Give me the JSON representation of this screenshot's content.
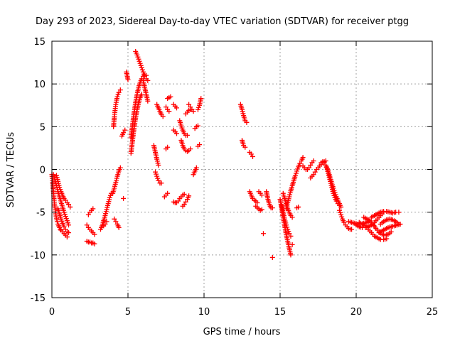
{
  "chart_data": {
    "type": "scatter",
    "title": "Day 293 of 2023, Sidereal Day-to-day VTEC variation (SDTVAR) for receiver ptgg",
    "xlabel": "GPS time / hours",
    "ylabel": "SDTVAR / TECUs",
    "xlim": [
      0,
      25
    ],
    "ylim": [
      -15,
      15
    ],
    "xticks": [
      0,
      5,
      10,
      15,
      20,
      25
    ],
    "yticks": [
      -15,
      -10,
      -5,
      0,
      5,
      10,
      15
    ],
    "xtick_labels": [
      "0",
      "5",
      "10",
      "15",
      "20",
      "25"
    ],
    "ytick_labels": [
      "-15",
      "-10",
      "-5",
      "0",
      "5",
      "10",
      "15"
    ],
    "grid": true,
    "marker": "+",
    "color": "#ff0000",
    "series": [
      {
        "name": "t0",
        "x": [
          0.0,
          0.05,
          0.1,
          0.15,
          0.2,
          0.25,
          0.3,
          0.35,
          0.4,
          0.45,
          0.5,
          0.55,
          0.6,
          0.7,
          0.8,
          0.9,
          1.0
        ],
        "y": [
          -0.6,
          -1.5,
          -2.6,
          -3.6,
          -4.5,
          -5.2,
          -5.7,
          -6.1,
          -6.4,
          -6.6,
          -6.8,
          -7.0,
          -7.1,
          -7.3,
          -7.5,
          -7.7,
          -7.9
        ]
      },
      {
        "name": "t1",
        "x": [
          0.1,
          0.2,
          0.3,
          0.4,
          0.5,
          0.6,
          0.7,
          0.8,
          0.9,
          1.0,
          1.1
        ],
        "y": [
          -0.6,
          -1.2,
          -1.9,
          -2.6,
          -3.2,
          -3.8,
          -4.4,
          -5.0,
          -5.5,
          -6.0,
          -6.5
        ]
      },
      {
        "name": "t2",
        "x": [
          0.3,
          0.4,
          0.5,
          0.6,
          0.7,
          0.8,
          0.9,
          1.0,
          1.1,
          1.2
        ],
        "y": [
          -0.7,
          -1.4,
          -2.1,
          -2.6,
          -3.0,
          -3.4,
          -3.6,
          -3.9,
          -4.1,
          -4.4
        ]
      },
      {
        "name": "t3",
        "x": [
          0.4,
          0.5,
          0.6,
          0.7,
          0.8,
          0.9,
          1.0,
          1.1
        ],
        "y": [
          -4.6,
          -5.2,
          -5.8,
          -6.3,
          -6.7,
          -7.0,
          -7.3,
          -7.4
        ]
      },
      {
        "name": "t4",
        "x": [
          2.3,
          2.4,
          2.5,
          2.6,
          2.7,
          2.8
        ],
        "y": [
          -8.4,
          -8.5,
          -8.5,
          -8.6,
          -8.6,
          -8.7
        ]
      },
      {
        "name": "t5",
        "x": [
          2.3,
          2.4,
          2.5,
          2.6,
          2.7,
          2.8
        ],
        "y": [
          -6.5,
          -6.8,
          -7.0,
          -7.2,
          -7.4,
          -7.6
        ]
      },
      {
        "name": "t6",
        "x": [
          2.4,
          2.5,
          2.6,
          2.7
        ],
        "y": [
          -5.3,
          -5.0,
          -4.8,
          -4.6
        ]
      },
      {
        "name": "t7",
        "x": [
          3.2,
          3.3,
          3.4,
          3.5,
          3.6,
          3.7,
          3.8,
          3.9
        ],
        "y": [
          -7.0,
          -6.6,
          -6.0,
          -5.4,
          -4.7,
          -4.0,
          -3.3,
          -2.8
        ]
      },
      {
        "name": "t8",
        "x": [
          3.4,
          3.5,
          3.6
        ],
        "y": [
          -6.6,
          -6.4,
          -6.1
        ]
      },
      {
        "name": "t9",
        "x": [
          4.1,
          4.2,
          4.3,
          4.4
        ],
        "y": [
          -5.8,
          -6.1,
          -6.4,
          -6.8
        ]
      },
      {
        "name": "t10",
        "x": [
          4.0,
          4.1,
          4.2,
          4.3,
          4.4,
          4.5
        ],
        "y": [
          -2.8,
          -2.2,
          -1.5,
          -0.8,
          -0.2,
          0.2
        ]
      },
      {
        "name": "t11",
        "x": [
          4.7
        ],
        "y": [
          -3.4
        ]
      },
      {
        "name": "t12",
        "x": [
          4.05,
          4.1,
          4.15,
          4.2,
          4.25,
          4.3,
          4.35,
          4.4,
          4.5
        ],
        "y": [
          5.0,
          6.0,
          6.9,
          7.6,
          8.1,
          8.5,
          8.8,
          9.0,
          9.3
        ]
      },
      {
        "name": "t13",
        "x": [
          4.6,
          4.7,
          4.8
        ],
        "y": [
          3.9,
          4.3,
          4.6
        ]
      },
      {
        "name": "t14",
        "x": [
          5.2,
          5.3,
          5.4,
          5.5,
          5.6,
          5.7,
          5.8,
          5.9,
          6.0,
          6.1,
          6.2
        ],
        "y": [
          3.7,
          5.2,
          6.6,
          7.8,
          8.8,
          9.6,
          10.2,
          10.6,
          10.9,
          11.0,
          11.0
        ]
      },
      {
        "name": "t15",
        "x": [
          5.2,
          5.3,
          5.4,
          5.5,
          5.6,
          5.7,
          5.8,
          5.9
        ],
        "y": [
          1.9,
          3.4,
          4.8,
          6.0,
          7.0,
          7.8,
          8.4,
          8.8
        ]
      },
      {
        "name": "t16",
        "x": [
          5.5,
          5.6,
          5.7,
          5.8,
          5.9,
          6.0,
          6.1,
          6.2,
          6.3
        ],
        "y": [
          13.8,
          13.4,
          12.9,
          12.4,
          11.9,
          11.4,
          10.9,
          10.6,
          10.4
        ]
      },
      {
        "name": "t17",
        "x": [
          4.9,
          5.0
        ],
        "y": [
          11.4,
          10.5
        ]
      },
      {
        "name": "t18",
        "x": [
          6.0,
          6.1,
          6.2,
          6.3
        ],
        "y": [
          10.4,
          9.6,
          8.8,
          8.0
        ]
      },
      {
        "name": "t19",
        "x": [
          6.7,
          6.8,
          6.9,
          7.0
        ],
        "y": [
          2.8,
          2.0,
          1.2,
          0.5
        ]
      },
      {
        "name": "t20",
        "x": [
          6.9,
          7.0,
          7.1,
          7.2,
          7.3
        ],
        "y": [
          7.6,
          7.2,
          6.8,
          6.4,
          6.2
        ]
      },
      {
        "name": "t21",
        "x": [
          6.8,
          6.9,
          7.0,
          7.1,
          7.2
        ],
        "y": [
          -0.3,
          -0.8,
          -1.3,
          -1.6,
          -1.6
        ]
      },
      {
        "name": "t22",
        "x": [
          7.5,
          7.6,
          7.7
        ],
        "y": [
          7.3,
          7.0,
          6.8
        ]
      },
      {
        "name": "t23",
        "x": [
          7.6,
          7.7,
          7.8
        ],
        "y": [
          8.3,
          8.4,
          8.5
        ]
      },
      {
        "name": "t24",
        "x": [
          7.5,
          7.6
        ],
        "y": [
          2.4,
          2.6
        ]
      },
      {
        "name": "t25",
        "x": [
          7.4,
          7.5,
          7.6
        ],
        "y": [
          -3.2,
          -3.0,
          -2.8
        ]
      },
      {
        "name": "t26",
        "x": [
          8.0,
          8.1,
          8.2
        ],
        "y": [
          4.6,
          4.4,
          4.2
        ]
      },
      {
        "name": "t27",
        "x": [
          8.0,
          8.1,
          8.2
        ],
        "y": [
          7.6,
          7.4,
          7.2
        ]
      },
      {
        "name": "t28",
        "x": [
          8.4,
          8.5,
          8.6,
          8.7,
          8.8,
          8.9
        ],
        "y": [
          5.7,
          5.1,
          4.6,
          4.2,
          4.0,
          4.0
        ]
      },
      {
        "name": "t29",
        "x": [
          8.8,
          8.9,
          9.0,
          9.1
        ],
        "y": [
          6.5,
          6.7,
          6.9,
          7.0
        ]
      },
      {
        "name": "t30",
        "x": [
          8.5,
          8.6,
          8.7,
          8.8,
          8.9,
          9.0,
          9.1
        ],
        "y": [
          3.4,
          2.8,
          2.4,
          2.2,
          2.1,
          2.2,
          2.4
        ]
      },
      {
        "name": "t31",
        "x": [
          8.0,
          8.1,
          8.2,
          8.3,
          8.4,
          8.5,
          8.6,
          8.7
        ],
        "y": [
          -3.8,
          -3.9,
          -3.9,
          -3.7,
          -3.4,
          -3.2,
          -3.0,
          -2.9
        ]
      },
      {
        "name": "t32",
        "x": [
          8.6,
          8.7,
          8.8,
          8.9,
          9.0
        ],
        "y": [
          -4.3,
          -4.1,
          -3.8,
          -3.5,
          -3.1
        ]
      },
      {
        "name": "t33",
        "x": [
          9.0,
          9.1,
          9.2,
          9.3
        ],
        "y": [
          7.6,
          7.3,
          7.0,
          6.8
        ]
      },
      {
        "name": "t34",
        "x": [
          9.3,
          9.4,
          9.5
        ],
        "y": [
          -0.6,
          -0.2,
          0.2
        ]
      },
      {
        "name": "t35",
        "x": [
          9.4,
          9.5,
          9.6
        ],
        "y": [
          4.8,
          5.0,
          5.1
        ]
      },
      {
        "name": "t36",
        "x": [
          9.6,
          9.7,
          9.8
        ],
        "y": [
          7.0,
          7.5,
          8.3
        ]
      },
      {
        "name": "t37",
        "x": [
          9.6,
          9.7
        ],
        "y": [
          2.7,
          2.9
        ]
      },
      {
        "name": "t38",
        "x": [
          12.4,
          12.5,
          12.6,
          12.7,
          12.8
        ],
        "y": [
          7.6,
          7.0,
          6.3,
          5.7,
          5.5
        ]
      },
      {
        "name": "t39",
        "x": [
          12.5,
          12.6,
          12.7
        ],
        "y": [
          3.4,
          2.8,
          2.6
        ]
      },
      {
        "name": "t40",
        "x": [
          13.0,
          13.1,
          13.2
        ],
        "y": [
          2.0,
          1.8,
          1.5
        ]
      },
      {
        "name": "t41",
        "x": [
          13.0,
          13.1,
          13.2,
          13.3,
          13.4,
          13.5
        ],
        "y": [
          -2.6,
          -3.0,
          -3.4,
          -3.6,
          -3.7,
          -3.9
        ]
      },
      {
        "name": "t42",
        "x": [
          13.6,
          13.7,
          13.8
        ],
        "y": [
          -2.6,
          -2.8,
          -3.0
        ]
      },
      {
        "name": "t43",
        "x": [
          13.4,
          13.5,
          13.6,
          13.7,
          13.8
        ],
        "y": [
          -4.3,
          -4.5,
          -4.6,
          -4.8,
          -4.7
        ]
      },
      {
        "name": "t44",
        "x": [
          13.9
        ],
        "y": [
          -7.5
        ]
      },
      {
        "name": "t45",
        "x": [
          14.1,
          14.2,
          14.3,
          14.4,
          14.5
        ],
        "y": [
          -2.6,
          -3.5,
          -4.1,
          -4.5,
          -4.5
        ]
      },
      {
        "name": "t46",
        "x": [
          14.5
        ],
        "y": [
          -10.3
        ]
      },
      {
        "name": "t47",
        "x": [
          15.0,
          15.1,
          15.2,
          15.3,
          15.4,
          15.5,
          15.6,
          15.7
        ],
        "y": [
          -3.5,
          -4.5,
          -5.6,
          -6.6,
          -7.6,
          -8.4,
          -9.2,
          -10.0
        ]
      },
      {
        "name": "t48",
        "x": [
          15.1,
          15.2,
          15.3,
          15.4,
          15.5,
          15.6,
          15.7
        ],
        "y": [
          -4.2,
          -5.0,
          -5.8,
          -6.5,
          -7.0,
          -7.5,
          -7.8
        ]
      },
      {
        "name": "t49",
        "x": [
          15.2,
          15.3,
          15.4,
          15.5,
          15.6,
          15.7,
          15.8
        ],
        "y": [
          -2.8,
          -3.4,
          -4.0,
          -4.6,
          -5.0,
          -5.4,
          -5.6
        ]
      },
      {
        "name": "t50",
        "x": [
          15.4,
          15.5,
          15.6,
          15.7,
          15.8,
          15.9,
          16.0,
          16.1,
          16.2,
          16.3,
          16.4,
          16.5
        ],
        "y": [
          -4.6,
          -3.9,
          -3.2,
          -2.5,
          -1.9,
          -1.3,
          -0.7,
          -0.2,
          0.3,
          0.7,
          1.0,
          1.4
        ]
      },
      {
        "name": "t51",
        "x": [
          16.1,
          16.2
        ],
        "y": [
          -4.5,
          -4.4
        ]
      },
      {
        "name": "t52",
        "x": [
          16.5,
          16.6,
          16.7,
          16.8,
          16.9,
          17.0,
          17.1,
          17.2
        ],
        "y": [
          0.4,
          0.2,
          0.0,
          0.0,
          0.2,
          0.5,
          0.8,
          1.0
        ]
      },
      {
        "name": "t53",
        "x": [
          15.8
        ],
        "y": [
          -8.8
        ]
      },
      {
        "name": "t54",
        "x": [
          17.0,
          17.1,
          17.2,
          17.3,
          17.4,
          17.5,
          17.6,
          17.7,
          17.8,
          17.9,
          18.0
        ],
        "y": [
          -1.0,
          -0.8,
          -0.6,
          -0.3,
          0.0,
          0.2,
          0.4,
          0.6,
          0.8,
          0.9,
          1.0
        ]
      },
      {
        "name": "t55",
        "x": [
          17.7,
          17.8,
          17.9,
          18.0,
          18.1,
          18.2,
          18.3,
          18.4,
          18.5,
          18.6,
          18.7,
          18.8,
          18.9
        ],
        "y": [
          0.8,
          0.9,
          0.8,
          0.5,
          0.0,
          -0.7,
          -1.4,
          -2.1,
          -2.8,
          -3.3,
          -3.7,
          -4.0,
          -4.2
        ]
      },
      {
        "name": "t56",
        "x": [
          18.0,
          18.1,
          18.2,
          18.3,
          18.4,
          18.5,
          18.6,
          18.7,
          18.8,
          18.9,
          19.0
        ],
        "y": [
          0.5,
          0.1,
          -0.4,
          -1.0,
          -1.6,
          -2.2,
          -2.7,
          -3.2,
          -3.6,
          -4.0,
          -4.4
        ]
      },
      {
        "name": "t57",
        "x": [
          18.9,
          19.0,
          19.1,
          19.2,
          19.3,
          19.4,
          19.5,
          19.6,
          19.7
        ],
        "y": [
          -4.8,
          -5.3,
          -5.8,
          -6.2,
          -6.5,
          -6.7,
          -6.9,
          -7.0,
          -7.0
        ]
      },
      {
        "name": "t58",
        "x": [
          19.5,
          19.7,
          19.9,
          20.1,
          20.3,
          20.5,
          20.7,
          20.9
        ],
        "y": [
          -6.1,
          -6.2,
          -6.3,
          -6.4,
          -6.4,
          -6.3,
          -6.2,
          -6.0
        ]
      },
      {
        "name": "t59",
        "x": [
          20.0,
          20.2,
          20.4,
          20.6,
          20.8,
          21.0,
          21.2,
          21.4,
          21.6,
          21.8
        ],
        "y": [
          -6.5,
          -6.7,
          -6.8,
          -6.8,
          -6.7,
          -6.5,
          -6.2,
          -5.8,
          -5.4,
          -5.0
        ]
      },
      {
        "name": "t60",
        "x": [
          20.2,
          20.4,
          20.6,
          20.8,
          21.0,
          21.2,
          21.4,
          21.6,
          21.8,
          22.0
        ],
        "y": [
          -6.2,
          -6.4,
          -6.6,
          -7.0,
          -7.4,
          -7.8,
          -8.0,
          -8.2,
          -8.2,
          -8.1
        ]
      },
      {
        "name": "t61",
        "x": [
          20.5,
          20.7,
          20.9,
          21.1,
          21.3,
          21.5,
          21.7,
          21.9,
          22.1,
          22.3
        ],
        "y": [
          -5.6,
          -5.8,
          -6.0,
          -6.4,
          -6.9,
          -7.3,
          -7.6,
          -7.7,
          -7.6,
          -7.3
        ]
      },
      {
        "name": "t62",
        "x": [
          21.0,
          21.2,
          21.4,
          21.6,
          21.8,
          22.0,
          22.2,
          22.4,
          22.6,
          22.8
        ],
        "y": [
          -5.6,
          -5.4,
          -5.2,
          -5.0,
          -4.9,
          -4.9,
          -5.0,
          -5.1,
          -5.0,
          -5.0
        ]
      },
      {
        "name": "t63",
        "x": [
          21.6,
          21.8,
          22.0,
          22.2,
          22.4,
          22.6,
          22.8
        ],
        "y": [
          -6.4,
          -6.1,
          -5.9,
          -5.8,
          -5.9,
          -6.1,
          -6.4
        ]
      },
      {
        "name": "t64",
        "x": [
          21.5,
          21.7,
          21.9,
          22.1,
          22.3,
          22.5,
          22.7,
          22.9
        ],
        "y": [
          -7.4,
          -7.2,
          -7.0,
          -6.8,
          -6.7,
          -6.6,
          -6.5,
          -6.4
        ]
      }
    ]
  }
}
